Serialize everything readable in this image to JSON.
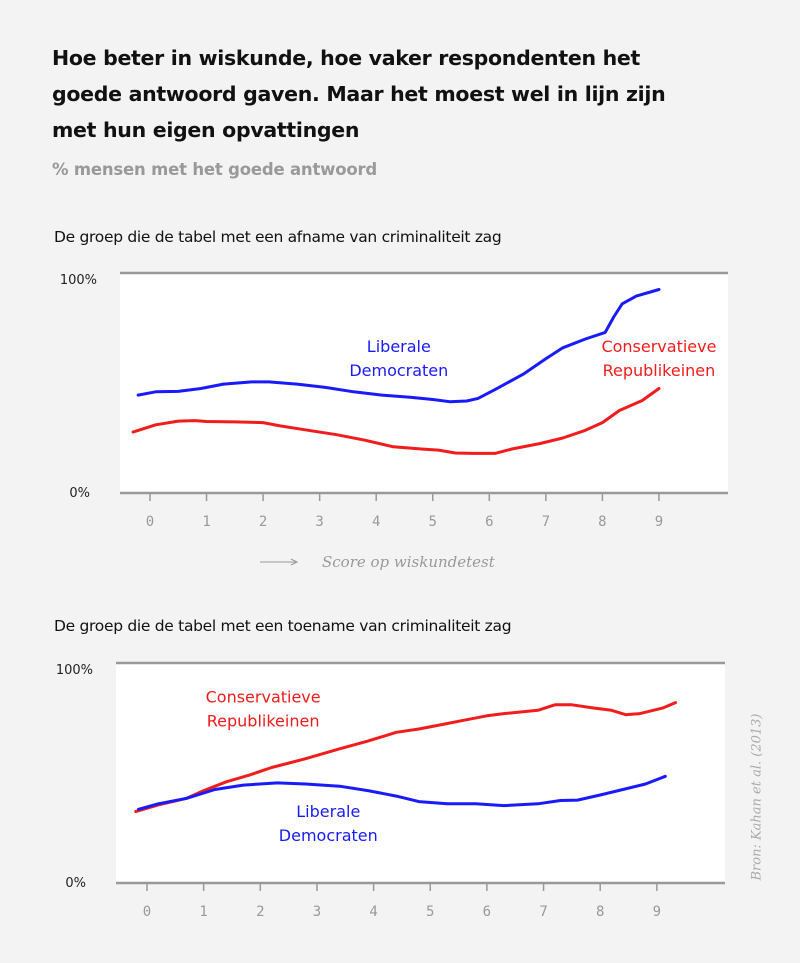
{
  "title": "Hoe beter in wiskunde, hoe vaker respondenten het goede antwoord gaven. Maar het moest wel in lijn zijn met hun eigen opvattingen",
  "subtitle": "% mensen met het goede antwoord",
  "source": "Bron: Kahan et al. (2013)",
  "colors": {
    "democrats": "#1a1aff",
    "republicans": "#f21c1c",
    "axis": "#999999",
    "plot_bg": "#ffffff"
  },
  "chart_data": [
    {
      "type": "line",
      "title": "De groep die de tabel met een afname van criminaliteit zag",
      "xlabel": "Score op wiskundetest",
      "ylabel": "% mensen met het goede antwoord",
      "xlim": [
        -0.55,
        10.2
      ],
      "ylim": [
        0,
        100
      ],
      "yticks": [
        "0%",
        "100%"
      ],
      "xticks": [
        "0",
        "1",
        "2",
        "3",
        "4",
        "5",
        "6",
        "7",
        "8",
        "9"
      ],
      "grid": false,
      "series": [
        {
          "name": "Liberale Democraten",
          "label_lines": [
            "Liberale",
            "Democraten"
          ],
          "color": "#1a1aff",
          "label_pos": [
            4.4,
            64
          ],
          "x": [
            -0.21,
            0.1,
            0.5,
            0.9,
            1.3,
            1.8,
            2.1,
            2.6,
            3.1,
            3.6,
            4.1,
            4.6,
            5.0,
            5.3,
            5.6,
            5.8,
            6.1,
            6.6,
            7.0,
            7.3,
            7.7,
            8.05,
            8.2,
            8.35,
            8.6,
            9.0
          ],
          "y": [
            44.5,
            46,
            46.2,
            47.5,
            49.5,
            50.5,
            50.5,
            49.5,
            48,
            46,
            44.5,
            43.5,
            42.5,
            41.5,
            41.8,
            43,
            47,
            54,
            61,
            66,
            70,
            73,
            80,
            86,
            89.5,
            92.5
          ]
        },
        {
          "name": "Conservatieve Republikeinen",
          "label_lines": [
            "Conservatieve",
            "Republikeinen"
          ],
          "color": "#f21c1c",
          "label_pos": [
            9.0,
            64
          ],
          "x": [
            -0.3,
            0.1,
            0.5,
            0.8,
            1.0,
            1.5,
            2.0,
            2.3,
            2.8,
            3.3,
            3.8,
            4.3,
            4.8,
            5.1,
            5.4,
            5.7,
            6.1,
            6.4,
            6.9,
            7.3,
            7.7,
            8.0,
            8.3,
            8.7,
            9.0
          ],
          "y": [
            27.7,
            31,
            32.7,
            32.9,
            32.5,
            32.3,
            32,
            30.5,
            28.5,
            26.5,
            24,
            21,
            20,
            19.5,
            18.2,
            18,
            18,
            20,
            22.5,
            25,
            28.5,
            32,
            37.5,
            42,
            47.5
          ]
        }
      ]
    },
    {
      "type": "line",
      "title": "De groep die de tabel met een toename van criminaliteit zag",
      "xlabel": "",
      "ylabel": "% mensen met het goede antwoord",
      "xlim": [
        -0.55,
        10.2
      ],
      "ylim": [
        0,
        100
      ],
      "yticks": [
        "0%",
        "100%"
      ],
      "xticks": [
        "0",
        "1",
        "2",
        "3",
        "4",
        "5",
        "6",
        "7",
        "8",
        "9"
      ],
      "grid": false,
      "series": [
        {
          "name": "Conservatieve Republikeinen",
          "label_lines": [
            "Conservatieve",
            "Republikeinen"
          ],
          "color": "#f21c1c",
          "label_pos": [
            2.05,
            82
          ],
          "x": [
            -0.2,
            0.2,
            0.7,
            1.0,
            1.4,
            1.8,
            2.2,
            2.8,
            3.4,
            3.9,
            4.4,
            4.8,
            5.2,
            5.6,
            6.0,
            6.3,
            6.9,
            7.2,
            7.5,
            7.9,
            8.2,
            8.45,
            8.7,
            9.1,
            9.33
          ],
          "y": [
            32.5,
            35.5,
            38.5,
            42,
            46,
            49,
            52.5,
            56.5,
            61,
            64.5,
            68.5,
            70,
            72,
            74,
            76,
            77,
            78.5,
            81,
            81,
            79.5,
            78.5,
            76.5,
            77,
            79.5,
            82
          ]
        },
        {
          "name": "Liberale Democraten",
          "label_lines": [
            "Liberale",
            "Democraten"
          ],
          "color": "#1a1aff",
          "label_pos": [
            3.2,
            30
          ],
          "x": [
            -0.15,
            0.2,
            0.7,
            1.2,
            1.7,
            2.3,
            2.8,
            3.4,
            3.9,
            4.4,
            4.8,
            5.3,
            5.8,
            6.3,
            6.9,
            7.3,
            7.6,
            8.0,
            8.4,
            8.8,
            9.05,
            9.15
          ],
          "y": [
            33.5,
            36,
            38.5,
            42.5,
            44.5,
            45.5,
            45,
            44,
            42,
            39.5,
            37,
            36,
            36,
            35.2,
            36,
            37.5,
            37.7,
            40,
            42.5,
            45,
            47.5,
            48.5
          ]
        }
      ]
    }
  ]
}
